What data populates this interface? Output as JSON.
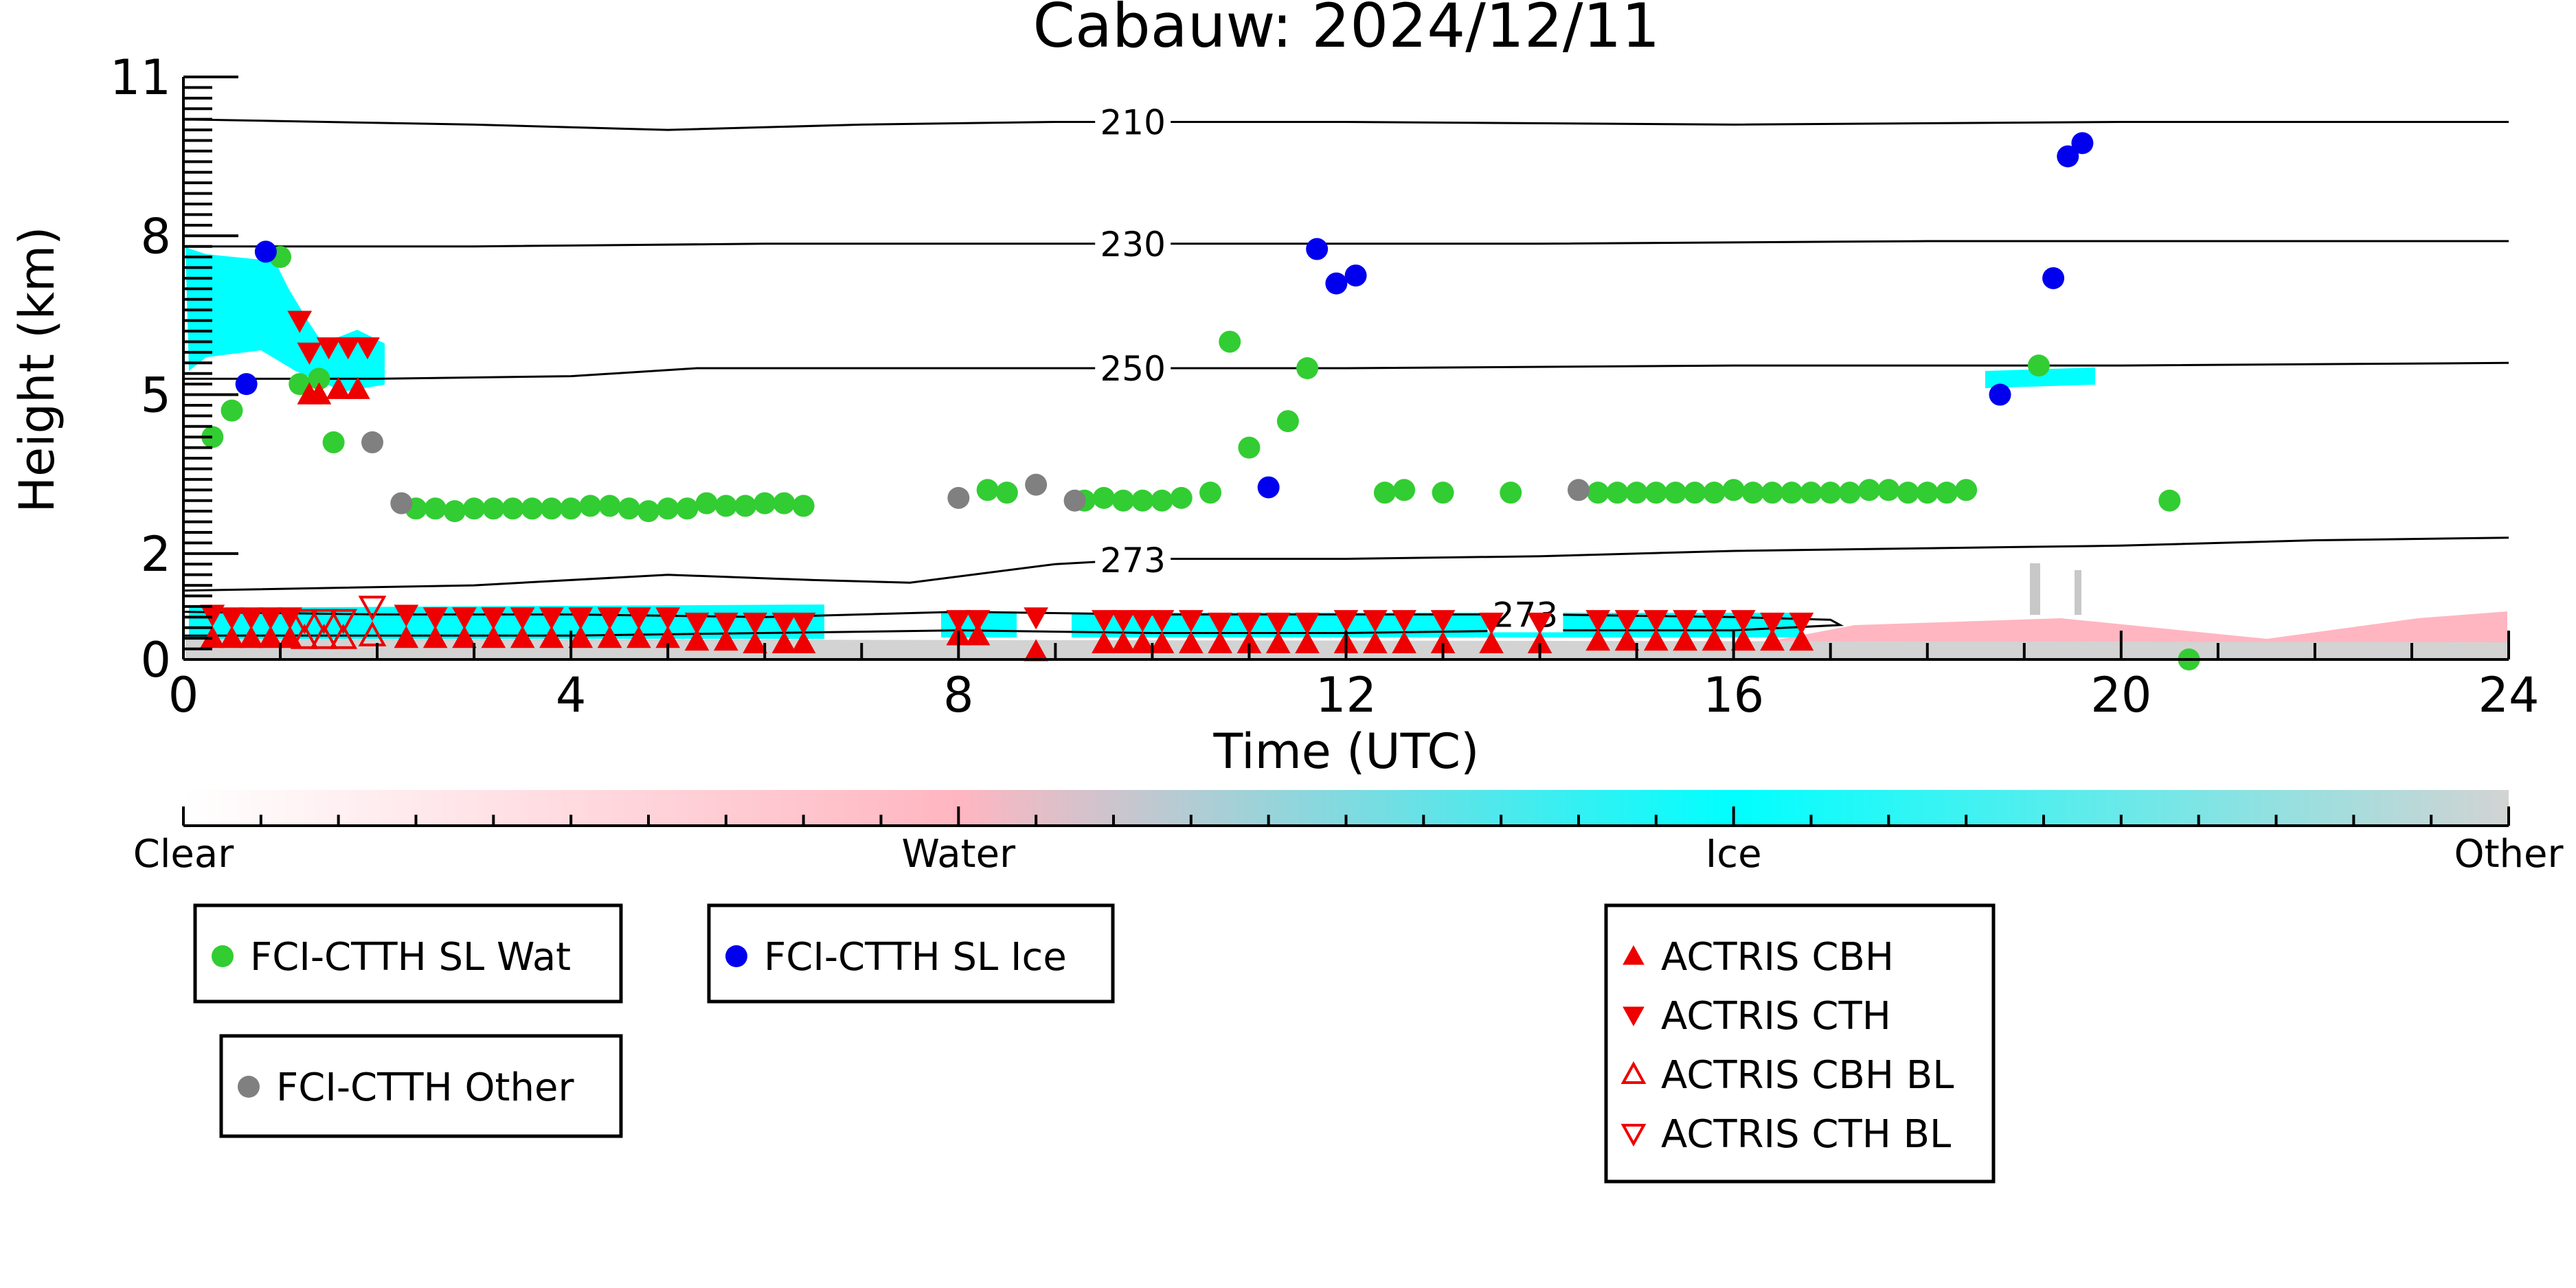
{
  "chart_data": {
    "type": "scatter",
    "title": "Cabauw: 2024/12/11",
    "xlabel": "Time (UTC)",
    "ylabel": "Height (km)",
    "xlim": [
      0,
      24
    ],
    "ylim": [
      0,
      11
    ],
    "x_ticks": [
      0,
      4,
      8,
      12,
      16,
      20,
      24
    ],
    "y_ticks": [
      0,
      2,
      5,
      8,
      11
    ],
    "grid": false,
    "colorbar": {
      "labels": [
        "Clear",
        "Water",
        "Ice",
        "Other"
      ],
      "stops": [
        {
          "at": 0.0,
          "color": "#ffffff"
        },
        {
          "at": 0.333,
          "color": "#ffb6c1"
        },
        {
          "at": 0.667,
          "color": "#00ffff"
        },
        {
          "at": 1.0,
          "color": "#d3d3d3"
        }
      ]
    },
    "contours": [
      {
        "label": "210",
        "label_x": 9.8,
        "points": [
          [
            0,
            10.2
          ],
          [
            3,
            10.1
          ],
          [
            5,
            10.0
          ],
          [
            7,
            10.1
          ],
          [
            9,
            10.15
          ],
          [
            12,
            10.15
          ],
          [
            16,
            10.1
          ],
          [
            20,
            10.15
          ],
          [
            24,
            10.15
          ]
        ]
      },
      {
        "label": "230",
        "label_x": 9.8,
        "points": [
          [
            0,
            7.8
          ],
          [
            3,
            7.8
          ],
          [
            6,
            7.85
          ],
          [
            10,
            7.85
          ],
          [
            14,
            7.85
          ],
          [
            18,
            7.9
          ],
          [
            24,
            7.9
          ]
        ]
      },
      {
        "label": "250",
        "label_x": 9.8,
        "points": [
          [
            0,
            5.3
          ],
          [
            2,
            5.3
          ],
          [
            4,
            5.35
          ],
          [
            5.3,
            5.5
          ],
          [
            8,
            5.5
          ],
          [
            12,
            5.5
          ],
          [
            16,
            5.55
          ],
          [
            20,
            5.55
          ],
          [
            24,
            5.6
          ]
        ]
      },
      {
        "label": "273",
        "label_x": 9.8,
        "points": [
          [
            0,
            1.3
          ],
          [
            3,
            1.4
          ],
          [
            5,
            1.6
          ],
          [
            6.5,
            1.5
          ],
          [
            7.5,
            1.45
          ],
          [
            9,
            1.8
          ],
          [
            10,
            1.9
          ],
          [
            12,
            1.9
          ],
          [
            14,
            1.95
          ],
          [
            16,
            2.05
          ],
          [
            18,
            2.1
          ],
          [
            20,
            2.15
          ],
          [
            22,
            2.25
          ],
          [
            24,
            2.3
          ]
        ]
      },
      {
        "label": "273",
        "label_x": 13.85,
        "points": [
          [
            0,
            0.9
          ],
          [
            2,
            0.85
          ],
          [
            4,
            0.85
          ],
          [
            6,
            0.8
          ],
          [
            8,
            0.9
          ],
          [
            10,
            0.85
          ],
          [
            12,
            0.85
          ],
          [
            14,
            0.85
          ],
          [
            16,
            0.8
          ],
          [
            17,
            0.75
          ],
          [
            17.1,
            0.65
          ],
          [
            16,
            0.55
          ],
          [
            14,
            0.55
          ],
          [
            12,
            0.5
          ],
          [
            10,
            0.5
          ],
          [
            8,
            0.55
          ],
          [
            6,
            0.5
          ],
          [
            4,
            0.45
          ],
          [
            2,
            0.45
          ],
          [
            0,
            0.45
          ]
        ]
      }
    ],
    "series": [
      {
        "name": "FCI-CTTH SL Wat",
        "marker": "circle",
        "filled": true,
        "color": "#32cd32",
        "points": [
          [
            0.3,
            4.2
          ],
          [
            0.5,
            4.7
          ],
          [
            1.0,
            7.6
          ],
          [
            1.2,
            5.2
          ],
          [
            1.4,
            5.3
          ],
          [
            1.55,
            4.1
          ],
          [
            2.4,
            2.85
          ],
          [
            2.6,
            2.85
          ],
          [
            2.8,
            2.8
          ],
          [
            3.0,
            2.85
          ],
          [
            3.2,
            2.85
          ],
          [
            3.4,
            2.85
          ],
          [
            3.6,
            2.85
          ],
          [
            3.8,
            2.85
          ],
          [
            4.0,
            2.85
          ],
          [
            4.2,
            2.9
          ],
          [
            4.4,
            2.9
          ],
          [
            4.6,
            2.85
          ],
          [
            4.8,
            2.8
          ],
          [
            5.0,
            2.85
          ],
          [
            5.2,
            2.85
          ],
          [
            5.4,
            2.95
          ],
          [
            5.6,
            2.9
          ],
          [
            5.8,
            2.9
          ],
          [
            6.0,
            2.95
          ],
          [
            6.2,
            2.95
          ],
          [
            6.4,
            2.9
          ],
          [
            8.3,
            3.2
          ],
          [
            8.5,
            3.15
          ],
          [
            9.3,
            3.0
          ],
          [
            9.5,
            3.05
          ],
          [
            9.7,
            3.0
          ],
          [
            9.9,
            3.0
          ],
          [
            10.1,
            3.0
          ],
          [
            10.3,
            3.05
          ],
          [
            10.6,
            3.15
          ],
          [
            10.8,
            6.0
          ],
          [
            11.0,
            4.0
          ],
          [
            11.4,
            4.5
          ],
          [
            11.6,
            5.5
          ],
          [
            12.4,
            3.15
          ],
          [
            12.6,
            3.2
          ],
          [
            13.0,
            3.15
          ],
          [
            13.7,
            3.15
          ],
          [
            14.6,
            3.15
          ],
          [
            14.8,
            3.15
          ],
          [
            15.0,
            3.15
          ],
          [
            15.2,
            3.15
          ],
          [
            15.4,
            3.15
          ],
          [
            15.6,
            3.15
          ],
          [
            15.8,
            3.15
          ],
          [
            16.0,
            3.2
          ],
          [
            16.2,
            3.15
          ],
          [
            16.4,
            3.15
          ],
          [
            16.6,
            3.15
          ],
          [
            16.8,
            3.15
          ],
          [
            17.0,
            3.15
          ],
          [
            17.2,
            3.15
          ],
          [
            17.4,
            3.2
          ],
          [
            17.6,
            3.2
          ],
          [
            17.8,
            3.15
          ],
          [
            18.0,
            3.15
          ],
          [
            18.2,
            3.15
          ],
          [
            18.4,
            3.2
          ],
          [
            19.15,
            5.55
          ],
          [
            20.5,
            3.0
          ],
          [
            20.7,
            0.0
          ]
        ]
      },
      {
        "name": "FCI-CTTH SL Ice",
        "marker": "circle",
        "filled": true,
        "color": "#0000ee",
        "points": [
          [
            0.65,
            5.2
          ],
          [
            0.85,
            7.7
          ],
          [
            11.2,
            3.25
          ],
          [
            11.7,
            7.75
          ],
          [
            11.9,
            7.1
          ],
          [
            12.1,
            7.25
          ],
          [
            18.75,
            5.0
          ],
          [
            19.3,
            7.2
          ],
          [
            19.45,
            9.5
          ],
          [
            19.6,
            9.75
          ]
        ]
      },
      {
        "name": "FCI-CTTH Other",
        "marker": "circle",
        "filled": true,
        "color": "#808080",
        "points": [
          [
            1.95,
            4.1
          ],
          [
            2.25,
            2.95
          ],
          [
            8.0,
            3.05
          ],
          [
            8.8,
            3.3
          ],
          [
            9.2,
            3.0
          ],
          [
            14.4,
            3.2
          ]
        ]
      },
      {
        "name": "ACTRIS CBH",
        "marker": "triangle-up",
        "filled": true,
        "color": "#ee0000",
        "points": [
          [
            0.3,
            0.4
          ],
          [
            0.5,
            0.4
          ],
          [
            0.7,
            0.4
          ],
          [
            0.9,
            0.4
          ],
          [
            1.1,
            0.4
          ],
          [
            1.3,
            5.0
          ],
          [
            1.4,
            5.0
          ],
          [
            1.6,
            5.1
          ],
          [
            1.8,
            5.1
          ],
          [
            2.3,
            0.4
          ],
          [
            2.6,
            0.4
          ],
          [
            2.9,
            0.4
          ],
          [
            3.2,
            0.4
          ],
          [
            3.5,
            0.4
          ],
          [
            3.8,
            0.4
          ],
          [
            4.1,
            0.4
          ],
          [
            4.4,
            0.4
          ],
          [
            4.7,
            0.4
          ],
          [
            5.0,
            0.4
          ],
          [
            5.3,
            0.35
          ],
          [
            5.6,
            0.35
          ],
          [
            5.9,
            0.3
          ],
          [
            6.2,
            0.3
          ],
          [
            6.4,
            0.3
          ],
          [
            8.0,
            0.45
          ],
          [
            8.2,
            0.45
          ],
          [
            8.8,
            0.15
          ],
          [
            9.5,
            0.3
          ],
          [
            9.7,
            0.3
          ],
          [
            9.9,
            0.3
          ],
          [
            10.1,
            0.3
          ],
          [
            10.4,
            0.3
          ],
          [
            10.7,
            0.3
          ],
          [
            11.0,
            0.3
          ],
          [
            11.3,
            0.3
          ],
          [
            11.6,
            0.3
          ],
          [
            12.0,
            0.3
          ],
          [
            12.3,
            0.3
          ],
          [
            12.6,
            0.3
          ],
          [
            13.0,
            0.3
          ],
          [
            13.5,
            0.3
          ],
          [
            14.0,
            0.3
          ],
          [
            14.6,
            0.35
          ],
          [
            14.9,
            0.35
          ],
          [
            15.2,
            0.35
          ],
          [
            15.5,
            0.35
          ],
          [
            15.8,
            0.35
          ],
          [
            16.1,
            0.35
          ],
          [
            16.4,
            0.35
          ],
          [
            16.7,
            0.35
          ]
        ]
      },
      {
        "name": "ACTRIS CTH",
        "marker": "triangle-down",
        "filled": true,
        "color": "#ee0000",
        "points": [
          [
            0.3,
            0.85
          ],
          [
            0.5,
            0.8
          ],
          [
            0.7,
            0.8
          ],
          [
            0.9,
            0.8
          ],
          [
            1.1,
            0.8
          ],
          [
            1.2,
            6.4
          ],
          [
            1.3,
            5.8
          ],
          [
            1.5,
            5.9
          ],
          [
            1.7,
            5.9
          ],
          [
            1.9,
            5.9
          ],
          [
            2.3,
            0.85
          ],
          [
            2.6,
            0.8
          ],
          [
            2.9,
            0.8
          ],
          [
            3.2,
            0.8
          ],
          [
            3.5,
            0.8
          ],
          [
            3.8,
            0.8
          ],
          [
            4.1,
            0.8
          ],
          [
            4.4,
            0.8
          ],
          [
            4.7,
            0.8
          ],
          [
            5.0,
            0.8
          ],
          [
            5.3,
            0.7
          ],
          [
            5.6,
            0.7
          ],
          [
            5.9,
            0.7
          ],
          [
            6.2,
            0.7
          ],
          [
            6.4,
            0.7
          ],
          [
            8.0,
            0.75
          ],
          [
            8.2,
            0.75
          ],
          [
            8.8,
            0.8
          ],
          [
            9.5,
            0.75
          ],
          [
            9.7,
            0.75
          ],
          [
            9.9,
            0.75
          ],
          [
            10.1,
            0.75
          ],
          [
            10.4,
            0.75
          ],
          [
            10.7,
            0.7
          ],
          [
            11.0,
            0.7
          ],
          [
            11.3,
            0.7
          ],
          [
            11.6,
            0.7
          ],
          [
            12.0,
            0.75
          ],
          [
            12.3,
            0.75
          ],
          [
            12.6,
            0.75
          ],
          [
            13.0,
            0.75
          ],
          [
            13.5,
            0.7
          ],
          [
            14.0,
            0.7
          ],
          [
            14.6,
            0.75
          ],
          [
            14.9,
            0.75
          ],
          [
            15.2,
            0.75
          ],
          [
            15.5,
            0.75
          ],
          [
            15.8,
            0.75
          ],
          [
            16.1,
            0.75
          ],
          [
            16.4,
            0.7
          ],
          [
            16.7,
            0.7
          ]
        ]
      },
      {
        "name": "ACTRIS CBH BL",
        "marker": "triangle-up",
        "filled": false,
        "color": "#ee0000",
        "points": [
          [
            1.25,
            0.4
          ],
          [
            1.45,
            0.4
          ],
          [
            1.65,
            0.4
          ],
          [
            1.95,
            0.45
          ]
        ]
      },
      {
        "name": "ACTRIS CTH BL",
        "marker": "triangle-down",
        "filled": false,
        "color": "#ee0000",
        "points": [
          [
            1.25,
            0.75
          ],
          [
            1.45,
            0.75
          ],
          [
            1.65,
            0.75
          ],
          [
            1.95,
            1.0
          ]
        ]
      }
    ]
  }
}
